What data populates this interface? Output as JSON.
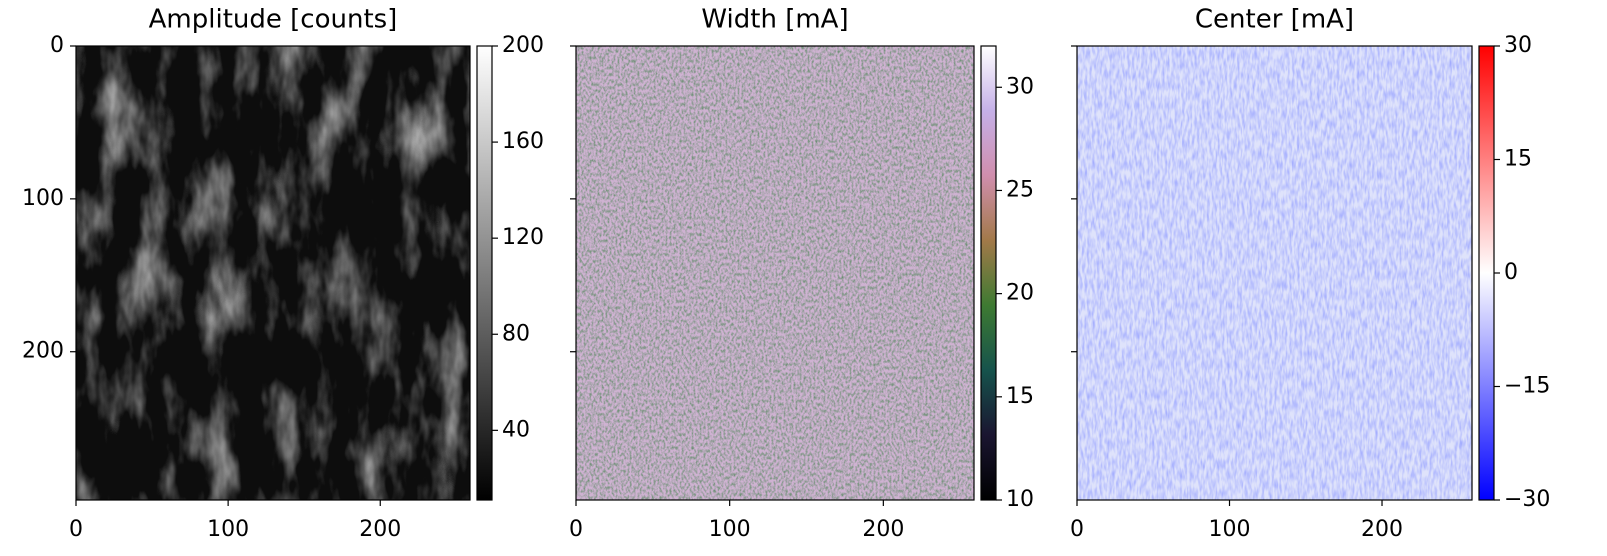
{
  "chart_data": [
    {
      "type": "image",
      "title": "Amplitude [counts]",
      "xlim": [
        0,
        259
      ],
      "ylim": [
        297,
        0
      ],
      "xticks": [
        0,
        100,
        200
      ],
      "yticks": [
        0,
        100,
        200
      ],
      "ytick_labels": true,
      "colorbar": {
        "lim": [
          11,
          200
        ],
        "ticks": [
          40,
          80,
          120,
          160,
          200
        ],
        "colors": [
          "#000000",
          "#ffffff"
        ]
      }
    },
    {
      "type": "image",
      "title": "Width [mA]",
      "xlim": [
        0,
        259
      ],
      "ylim": [
        297,
        0
      ],
      "xticks": [
        0,
        100,
        200
      ],
      "yticks": [
        0,
        100,
        200
      ],
      "ytick_labels": false,
      "colorbar": {
        "lim": [
          10,
          32
        ],
        "ticks": [
          10,
          15,
          20,
          25,
          30
        ],
        "colors": [
          "#000000",
          "#1a1530",
          "#16534c",
          "#3e7a32",
          "#a27949",
          "#d08ead",
          "#c5b0e8",
          "#ffffff"
        ]
      }
    },
    {
      "type": "image",
      "title": "Center [mA]",
      "xlim": [
        0,
        259
      ],
      "ylim": [
        297,
        0
      ],
      "xticks": [
        0,
        100,
        200
      ],
      "yticks": [
        0,
        100,
        200
      ],
      "ytick_labels": false,
      "colorbar": {
        "lim": [
          -30,
          30
        ],
        "ticks": [
          {
            "value": -30,
            "label": "−30"
          },
          {
            "value": -15,
            "label": "−15"
          },
          0,
          15,
          30
        ],
        "colors": [
          "#0000ff",
          "#ffffff",
          "#ff0000"
        ]
      }
    }
  ]
}
